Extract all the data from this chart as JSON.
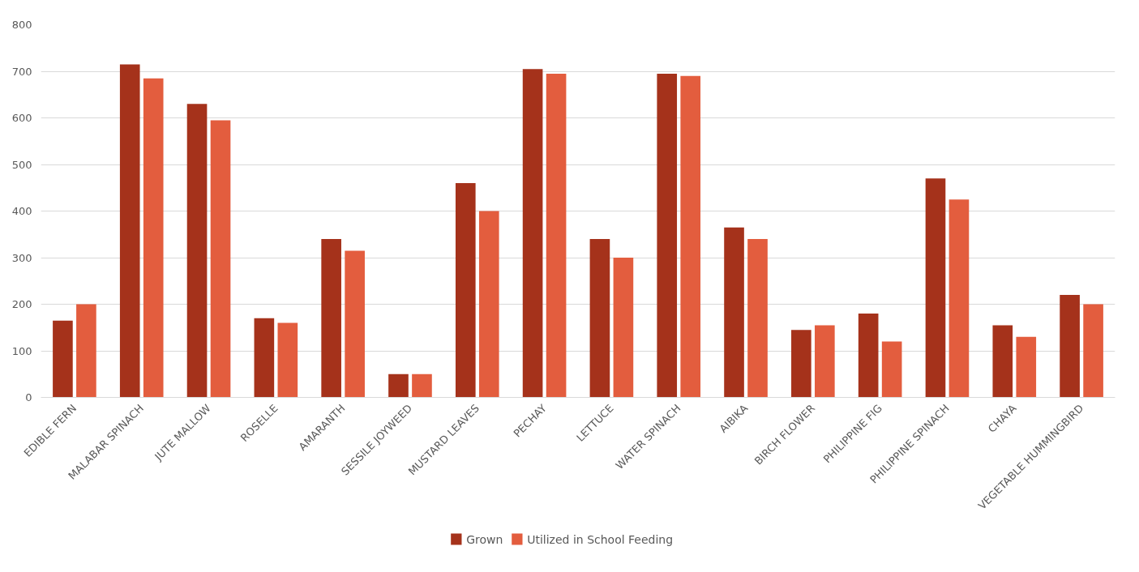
{
  "chart_data": {
    "type": "bar",
    "categories": [
      "EDIBLE FERN",
      "MALABAR SPINACH",
      "JUTE MALLOW",
      "ROSELLE",
      "AMARANTH",
      "SESSILE JOYWEED",
      "MUSTARD LEAVES",
      "PECHAY",
      "LETTUCE",
      "WATER SPINACH",
      "AIBIKA",
      "BIRCH FLOWER",
      "PHILIPPINE FIG",
      "PHILIPPINE SPINACH",
      "CHAYA",
      "VEGETABLE HUMMINGBIRD"
    ],
    "series": [
      {
        "name": "Grown",
        "color": "#a5321b",
        "values": [
          165,
          715,
          630,
          170,
          340,
          50,
          460,
          705,
          340,
          695,
          365,
          145,
          180,
          470,
          155,
          220
        ]
      },
      {
        "name": "Utilized in School Feeding",
        "color": "#e35d3e",
        "values": [
          200,
          685,
          595,
          160,
          315,
          50,
          400,
          695,
          300,
          690,
          340,
          155,
          120,
          425,
          130,
          200
        ]
      }
    ],
    "ylim": [
      0,
      800
    ],
    "yticks": [
      0,
      100,
      200,
      300,
      400,
      500,
      600,
      700,
      800
    ],
    "grid": "y",
    "legend": "bottom"
  }
}
